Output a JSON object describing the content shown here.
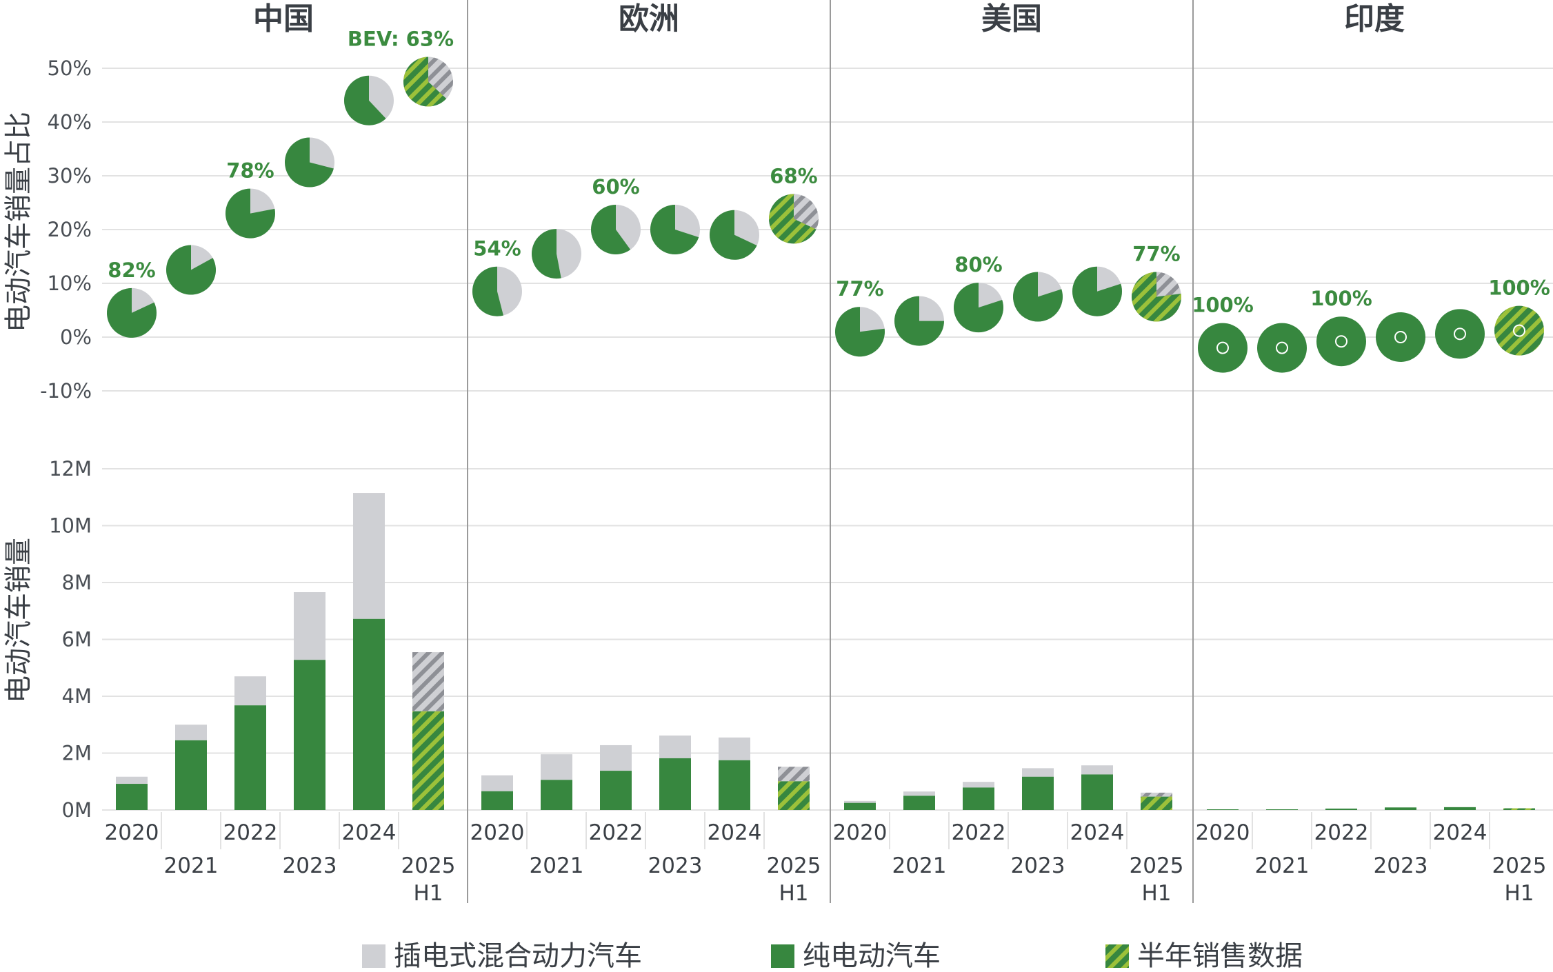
{
  "chart_data": {
    "type": "bar",
    "colors": {
      "bev": "#37873f",
      "phev": "#cfd0d4",
      "hatch_light": "#9cc13a",
      "grid": "#e2e2e2",
      "divider": "#9a9a9a"
    },
    "share_axis": {
      "ylabel": "电动汽车销量占比",
      "ylim": [
        -10,
        50
      ],
      "ticks": [
        "50%",
        "40%",
        "30%",
        "20%",
        "10%",
        "0%",
        "-10%"
      ],
      "tick_values": [
        50,
        40,
        30,
        20,
        10,
        0,
        -10
      ]
    },
    "sales_axis": {
      "ylabel": "电动汽车销量",
      "ylim": [
        0,
        12
      ],
      "ticks": [
        "12M",
        "10M",
        "8M",
        "6M",
        "4M",
        "2M",
        "0M"
      ],
      "tick_values": [
        12,
        10,
        8,
        6,
        4,
        2,
        0
      ]
    },
    "categories": [
      "2020",
      "2021",
      "2022",
      "2023",
      "2024",
      "2025"
    ],
    "h1_label": "H1",
    "regions": [
      {
        "name": "中国",
        "ev_share": [
          4.5,
          12.5,
          23,
          32.5,
          44,
          47.5
        ],
        "bev_fraction": [
          0.82,
          0.83,
          0.78,
          0.71,
          0.62,
          0.63
        ],
        "labels": [
          "82%",
          "",
          "78%",
          "",
          "",
          "BEV: 63%"
        ],
        "bev_sales": [
          0.92,
          2.45,
          3.68,
          5.28,
          6.72,
          3.47
        ],
        "phev_sales": [
          0.25,
          0.55,
          1.02,
          2.38,
          4.43,
          2.08
        ]
      },
      {
        "name": "欧洲",
        "ev_share": [
          8.5,
          15.5,
          20,
          20,
          19,
          22
        ],
        "bev_fraction": [
          0.54,
          0.53,
          0.6,
          0.7,
          0.68,
          0.68
        ],
        "labels": [
          "54%",
          "",
          "60%",
          "",
          "",
          "68%"
        ],
        "bev_sales": [
          0.66,
          1.06,
          1.38,
          1.82,
          1.75,
          1.01
        ],
        "phev_sales": [
          0.56,
          0.9,
          0.9,
          0.8,
          0.8,
          0.51
        ]
      },
      {
        "name": "美国",
        "ev_share": [
          1,
          3,
          5.5,
          7.5,
          8.5,
          7.5
        ],
        "bev_fraction": [
          0.77,
          0.75,
          0.8,
          0.8,
          0.8,
          0.77
        ],
        "labels": [
          "77%",
          "",
          "80%",
          "",
          "",
          "77%"
        ],
        "bev_sales": [
          0.25,
          0.5,
          0.79,
          1.17,
          1.25,
          0.47
        ],
        "phev_sales": [
          0.07,
          0.15,
          0.2,
          0.3,
          0.32,
          0.14
        ]
      },
      {
        "name": "印度",
        "ev_share": [
          -2,
          -2,
          -0.8,
          0,
          0.6,
          1.2
        ],
        "bev_fraction": [
          1,
          1,
          1,
          1,
          1,
          1
        ],
        "labels": [
          "100%",
          "",
          "100%",
          "",
          "",
          "100%"
        ],
        "bev_sales": [
          0.005,
          0.015,
          0.05,
          0.09,
          0.1,
          0.06
        ],
        "phev_sales": [
          0,
          0,
          0,
          0,
          0,
          0
        ]
      }
    ],
    "legend": [
      {
        "key": "phev",
        "label": "插电式混合动力汽车"
      },
      {
        "key": "bev",
        "label": "纯电动汽车"
      },
      {
        "key": "h1",
        "label": "半年销售数据"
      }
    ]
  }
}
